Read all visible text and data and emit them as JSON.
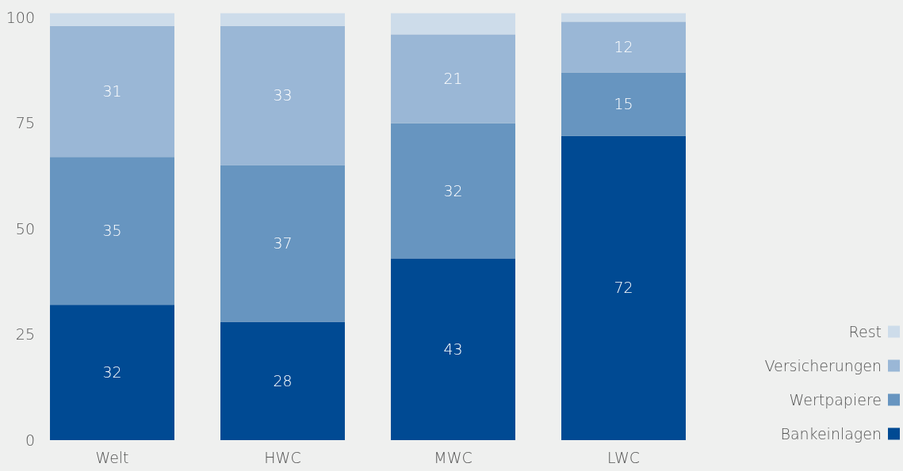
{
  "chart_data": {
    "type": "bar",
    "stacked": true,
    "categories": [
      "Welt",
      "HWC",
      "MWC",
      "LWC"
    ],
    "series": [
      {
        "name": "Bankeinlagen",
        "color": "#004a93",
        "values": [
          32,
          28,
          43,
          72
        ],
        "value_labels": [
          "32",
          "28",
          "43",
          "72"
        ]
      },
      {
        "name": "Wertpapiere",
        "color": "#6795c0",
        "values": [
          35,
          37,
          32,
          15
        ],
        "value_labels": [
          "35",
          "37",
          "32",
          "15"
        ]
      },
      {
        "name": "Versicherungen",
        "color": "#9ab7d6",
        "values": [
          31,
          33,
          21,
          12
        ],
        "value_labels": [
          "31",
          "33",
          "21",
          "12"
        ]
      },
      {
        "name": "Rest",
        "color": "#cddcea",
        "values": [
          3,
          3,
          5,
          2
        ],
        "value_labels": [
          null,
          null,
          null,
          null
        ]
      }
    ],
    "ylim": [
      0,
      101
    ],
    "yticks": [
      0,
      25,
      50,
      75,
      100
    ],
    "grid": false,
    "legend": "bottom right"
  }
}
